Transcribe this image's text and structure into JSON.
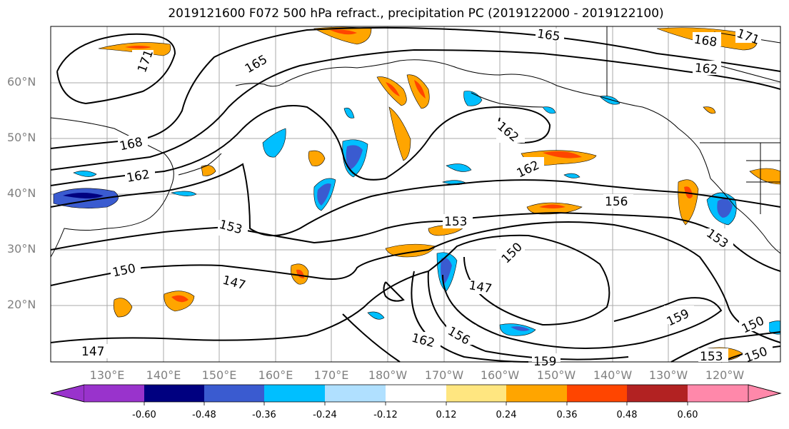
{
  "title": "2019121600 F072 500 hPa refract., precipitation PC (2019122000 - 2019122100)",
  "lat_labels": [
    "60°N",
    "50°N",
    "40°N",
    "30°N",
    "20°N"
  ],
  "lon_labels": [
    "130°E",
    "140°E",
    "150°E",
    "160°E",
    "170°E",
    "180°W",
    "170°W",
    "160°W",
    "150°W",
    "140°W",
    "130°W",
    "120°W"
  ],
  "contour_labels": [
    "165",
    "171",
    "168",
    "171",
    "162",
    "162",
    "168",
    "162",
    "156",
    "153",
    "153",
    "150",
    "150",
    "147",
    "147",
    "162",
    "156",
    "159",
    "159",
    "150",
    "153",
    "150"
  ],
  "colorbar": {
    "ticks": [
      "-0.60",
      "-0.48",
      "-0.36",
      "-0.24",
      "-0.12",
      "0.12",
      "0.24",
      "0.36",
      "0.48",
      "0.60"
    ],
    "colors": [
      "#9933cc",
      "#000080",
      "#3a5bd0",
      "#00bfff",
      "#b0e0ff",
      "#ffffff",
      "#ffe680",
      "#ffa500",
      "#ff4500",
      "#b22222",
      "#ff88aa"
    ]
  }
}
